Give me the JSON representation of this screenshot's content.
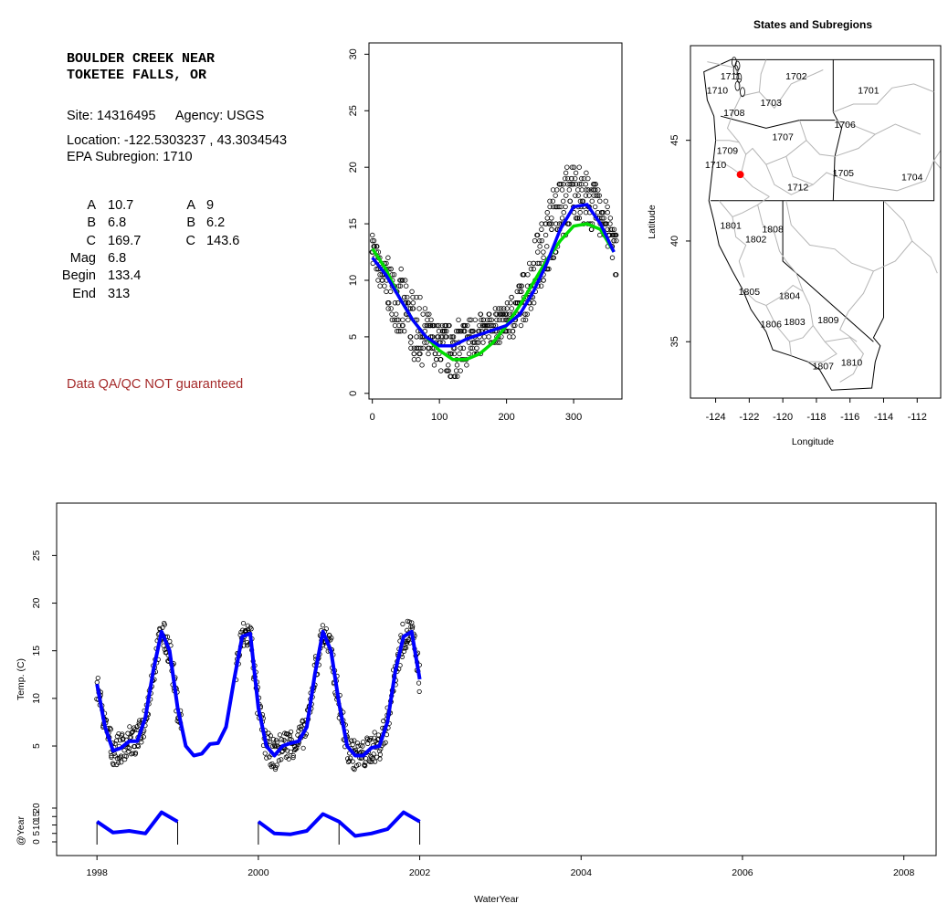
{
  "info": {
    "title_line1": "BOULDER CREEK NEAR",
    "title_line2": "TOKETEE FALLS, OR",
    "site_label": "Site:",
    "site": "14316495",
    "agency_label": "Agency:",
    "agency": "USGS",
    "location_label": "Location:",
    "location": "-122.5303237 , 43.3034543",
    "epa_label": "EPA Subregion:",
    "epa": "1710",
    "params_left": [
      {
        "label": "A",
        "value": "10.7"
      },
      {
        "label": "B",
        "value": "6.8"
      },
      {
        "label": "C",
        "value": "169.7"
      },
      {
        "label": "Mag",
        "value": "6.8"
      },
      {
        "label": "Begin",
        "value": "133.4"
      },
      {
        "label": "End",
        "value": "313"
      }
    ],
    "params_right": [
      {
        "label": "A",
        "value": "9"
      },
      {
        "label": "B",
        "value": "6.2"
      },
      {
        "label": "C",
        "value": "143.6"
      }
    ],
    "qa_note": "Data QA/QC NOT guaranteed"
  },
  "chart_data": [
    {
      "type": "scatter",
      "name_hint": "seasonal",
      "title": "",
      "xlabel": "",
      "ylabel": "",
      "xlim": [
        -5,
        372
      ],
      "ylim": [
        -0.5,
        31
      ],
      "xticks": [
        0,
        100,
        200,
        300
      ],
      "yticks": [
        0,
        5,
        10,
        15,
        20,
        25,
        30
      ],
      "series": [
        {
          "kind": "points",
          "color": "#000000",
          "x": [
            1,
            10,
            20,
            30,
            40,
            50,
            60,
            70,
            80,
            90,
            100,
            110,
            120,
            130,
            140,
            150,
            160,
            170,
            180,
            190,
            200,
            210,
            220,
            230,
            240,
            250,
            260,
            270,
            280,
            290,
            300,
            310,
            320,
            330,
            340,
            350,
            360,
            365
          ],
          "y": [
            13,
            11,
            10,
            9,
            8,
            7,
            6,
            5.5,
            5,
            4.5,
            4,
            4,
            3.5,
            4,
            4.5,
            5,
            5,
            5.5,
            6,
            6,
            6.5,
            7,
            8,
            9,
            10.5,
            12,
            13.5,
            15,
            16,
            17,
            18,
            17.5,
            17,
            16.5,
            16,
            15,
            13,
            12
          ],
          "spread": [
            1.5,
            1.5,
            2,
            2.5,
            3,
            3,
            3,
            3,
            2.5,
            2,
            2,
            2.5,
            2.5,
            2.5,
            2.5,
            2,
            2,
            1.5,
            1.5,
            1.5,
            1.5,
            2,
            2,
            2.5,
            2.5,
            3,
            3,
            3,
            3,
            3,
            2.5,
            2.5,
            2.5,
            2,
            2,
            2,
            2,
            2
          ]
        },
        {
          "kind": "line",
          "color": "#0000ff",
          "x": [
            0,
            20,
            40,
            60,
            80,
            100,
            120,
            140,
            160,
            180,
            200,
            220,
            240,
            260,
            280,
            300,
            320,
            340,
            360
          ],
          "y": [
            12,
            10.5,
            8.5,
            6.5,
            5,
            4.2,
            4.2,
            4.8,
            5.2,
            5.6,
            6,
            7,
            9,
            11.5,
            14.5,
            16.5,
            16.7,
            15,
            12.5
          ]
        },
        {
          "kind": "line",
          "color": "#00dd00",
          "x": [
            0,
            20,
            40,
            60,
            80,
            100,
            120,
            140,
            160,
            180,
            200,
            220,
            240,
            260,
            280,
            300,
            320,
            340,
            360
          ],
          "y": [
            12.8,
            11,
            8.5,
            6.5,
            5,
            3.8,
            3,
            3,
            3.5,
            4.5,
            6,
            7.8,
            9.8,
            11.8,
            13.5,
            14.8,
            15,
            14.5,
            12.5
          ]
        }
      ]
    },
    {
      "type": "map",
      "title": "States and Subregions",
      "xlabel": "Longitude",
      "ylabel": "Latitude",
      "xlim": [
        -125.5,
        -110.6
      ],
      "ylim": [
        32.2,
        49.7
      ],
      "xticks": [
        -124,
        -122,
        -120,
        -118,
        -116,
        -114,
        -112
      ],
      "yticks": [
        35,
        40,
        45
      ],
      "site_point": {
        "lon": -122.53,
        "lat": 43.3,
        "color": "#ff0000"
      },
      "subregion_labels": [
        {
          "label": "1711",
          "lon": -123.1,
          "lat": 48.2
        },
        {
          "label": "1702",
          "lon": -119.2,
          "lat": 48.2
        },
        {
          "label": "1701",
          "lon": -114.9,
          "lat": 47.5
        },
        {
          "label": "1710",
          "lon": -123.9,
          "lat": 47.5
        },
        {
          "label": "1703",
          "lon": -120.7,
          "lat": 46.9
        },
        {
          "label": "1708",
          "lon": -122.9,
          "lat": 46.4
        },
        {
          "label": "1706",
          "lon": -116.3,
          "lat": 45.8
        },
        {
          "label": "1707",
          "lon": -120.0,
          "lat": 45.2
        },
        {
          "label": "1709",
          "lon": -123.3,
          "lat": 44.5
        },
        {
          "label": "1710",
          "lon": -124.0,
          "lat": 43.8
        },
        {
          "label": "1705",
          "lon": -116.4,
          "lat": 43.4
        },
        {
          "label": "1704",
          "lon": -112.3,
          "lat": 43.2
        },
        {
          "label": "1712",
          "lon": -119.1,
          "lat": 42.7
        },
        {
          "label": "1801",
          "lon": -123.1,
          "lat": 40.8
        },
        {
          "label": "1808",
          "lon": -120.6,
          "lat": 40.6
        },
        {
          "label": "1802",
          "lon": -121.6,
          "lat": 40.1
        },
        {
          "label": "1805",
          "lon": -122.0,
          "lat": 37.5
        },
        {
          "label": "1804",
          "lon": -119.6,
          "lat": 37.3
        },
        {
          "label": "1806",
          "lon": -120.7,
          "lat": 35.9
        },
        {
          "label": "1803",
          "lon": -119.3,
          "lat": 36.0
        },
        {
          "label": "1809",
          "lon": -117.3,
          "lat": 36.1
        },
        {
          "label": "1810",
          "lon": -115.9,
          "lat": 34.0
        },
        {
          "label": "1807",
          "lon": -117.6,
          "lat": 33.8
        }
      ]
    },
    {
      "type": "line",
      "title": "",
      "xlabel": "WaterYear",
      "ylabel": "Temp. (C)",
      "ylabel_lower": "@Year",
      "xlim": [
        1997.5,
        2008.4
      ],
      "ylim": [
        -6.5,
        30.5
      ],
      "xticks": [
        1998,
        2000,
        2002,
        2004,
        2006,
        2008
      ],
      "yticks": [
        5,
        10,
        15,
        20,
        25
      ],
      "yticks_lower": [
        0,
        5,
        10,
        15,
        20
      ],
      "series": [
        {
          "kind": "points_and_line",
          "color": "#0000ff",
          "x": [
            1998.0,
            1998.1,
            1998.2,
            1998.3,
            1998.4,
            1998.5,
            1998.6,
            1998.7,
            1998.8,
            1998.9,
            1999.0,
            1999.1,
            1999.2,
            1999.3,
            1999.4,
            1999.5,
            1999.6,
            1999.7,
            1999.8,
            1999.9,
            2000.0,
            2000.1,
            2000.2,
            2000.3,
            2000.4,
            2000.5,
            2000.6,
            2000.7,
            2000.8,
            2000.9,
            2001.0,
            2001.1,
            2001.2,
            2001.3,
            2001.4,
            2001.5,
            2001.6,
            2001.7,
            2001.8,
            2001.9,
            2002.0
          ],
          "y": [
            11.5,
            7,
            4.5,
            4.8,
            5.5,
            5.5,
            8,
            13,
            17,
            15,
            9,
            5,
            4,
            4.2,
            5.2,
            5.3,
            7,
            12,
            16.5,
            16.8,
            9,
            5,
            4,
            5,
            5.3,
            5.5,
            7,
            12.5,
            17,
            15,
            9.5,
            5,
            4,
            4,
            4.8,
            5,
            7.5,
            13,
            16.5,
            17,
            12
          ]
        },
        {
          "kind": "lower_curve",
          "color": "#0000ff",
          "segments": [
            {
              "x": [
                1998.0,
                1998.2,
                1998.4,
                1998.6,
                1998.8,
                1999.0
              ],
              "y": [
                12,
                5.5,
                6.5,
                5,
                17.5,
                12
              ]
            },
            {
              "x": [
                2000.0,
                2000.2,
                2000.4,
                2000.6,
                2000.8,
                2001.0,
                2001.2,
                2001.4,
                2001.6,
                2001.8,
                2002.0
              ],
              "y": [
                12,
                5,
                4.5,
                6.5,
                16.5,
                12,
                3.5,
                5,
                7.5,
                17.5,
                12
              ]
            }
          ],
          "year_markers": [
            1998.0,
            1999.0,
            2000.0,
            2001.0,
            2002.0
          ]
        }
      ]
    }
  ]
}
